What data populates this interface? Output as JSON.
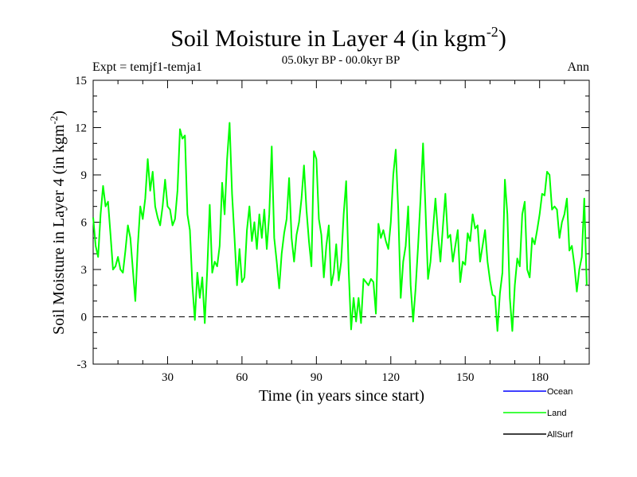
{
  "chart_data": {
    "type": "line",
    "title": "Soil Moisture in Layer 4 (in kgm",
    "title_sup": "-2",
    "title_close": ")",
    "subtitle": "05.0kyr BP - 00.0kyr BP",
    "left_label": "Expt = temjf1-temja1",
    "right_label": "Ann",
    "xlabel": "Time (in years since start)",
    "ylabel": "Soil Moisture in Layer 4 (in kgm",
    "ylabel_sup": "-2",
    "ylabel_close": ")",
    "xlim": [
      0,
      200
    ],
    "ylim": [
      -3,
      15
    ],
    "xticks": [
      30,
      60,
      90,
      120,
      150,
      180
    ],
    "yticks": [
      -3,
      0,
      3,
      6,
      9,
      12,
      15
    ],
    "xtick_labels": [
      "30",
      "60",
      "90",
      "120",
      "150",
      "180"
    ],
    "ytick_labels": [
      "-3",
      "0",
      "3",
      "6",
      "9",
      "12",
      "15"
    ],
    "reference_line_y": 0,
    "legend": [
      {
        "name": "Ocean",
        "color": "#0000ff"
      },
      {
        "name": "Land",
        "color": "#00ff00"
      },
      {
        "name": "AllSurf",
        "color": "#000000"
      }
    ],
    "series": [
      {
        "name": "Land",
        "color": "#00ff00",
        "x_start": 0,
        "x_step": 1,
        "values": [
          6.3,
          4.5,
          3.8,
          6.5,
          8.3,
          7.0,
          7.3,
          5.2,
          3.0,
          3.2,
          3.8,
          3.0,
          2.8,
          4.2,
          5.8,
          5.0,
          3.0,
          1.0,
          4.5,
          7.0,
          6.2,
          7.5,
          10.0,
          8.0,
          9.2,
          7.0,
          6.3,
          5.8,
          7.0,
          8.7,
          7.0,
          6.8,
          5.8,
          6.2,
          8.0,
          11.9,
          11.3,
          11.5,
          6.5,
          5.5,
          2.0,
          -0.2,
          2.8,
          1.2,
          2.5,
          -0.4,
          3.0,
          7.1,
          2.8,
          3.5,
          3.2,
          4.5,
          8.5,
          6.5,
          10.0,
          12.3,
          7.8,
          5.0,
          2.0,
          4.3,
          2.2,
          2.5,
          5.5,
          7.0,
          4.8,
          6.0,
          4.3,
          6.5,
          5.0,
          6.8,
          4.3,
          6.5,
          10.8,
          5.0,
          3.5,
          1.8,
          4.0,
          5.3,
          6.2,
          8.8,
          5.0,
          3.5,
          5.2,
          6.0,
          7.5,
          9.6,
          6.8,
          4.8,
          3.2,
          10.5,
          10.0,
          6.2,
          5.2,
          2.5,
          4.5,
          5.8,
          2.0,
          2.8,
          4.6,
          2.3,
          3.5,
          6.5,
          8.6,
          3.0,
          -0.8,
          1.2,
          -0.3,
          1.2,
          -0.4,
          2.4,
          2.2,
          2.0,
          2.4,
          2.2,
          0.2,
          5.9,
          5.0,
          5.5,
          4.8,
          4.3,
          6.0,
          9.0,
          10.6,
          6.8,
          1.2,
          3.5,
          4.5,
          7.0,
          2.0,
          -0.3,
          1.8,
          4.5,
          7.5,
          11.0,
          6.8,
          2.4,
          3.5,
          5.5,
          7.5,
          5.3,
          3.5,
          5.7,
          7.8,
          5.0,
          5.2,
          3.5,
          4.5,
          5.5,
          2.2,
          3.5,
          3.3,
          5.3,
          4.8,
          6.5,
          5.6,
          5.8,
          3.5,
          4.5,
          5.5,
          3.5,
          2.3,
          1.4,
          1.3,
          -0.9,
          1.5,
          2.8,
          8.7,
          6.5,
          1.2,
          -0.9,
          2.0,
          3.7,
          3.2,
          6.5,
          7.3,
          3.0,
          2.5,
          5.0,
          4.6,
          5.5,
          6.5,
          7.8,
          7.7,
          9.2,
          9.0,
          6.8,
          7.0,
          6.8,
          5.0,
          6.0,
          6.5,
          7.5,
          4.2,
          4.5,
          3.3,
          1.6,
          3.0,
          3.8,
          7.5,
          2.0
        ]
      }
    ]
  }
}
